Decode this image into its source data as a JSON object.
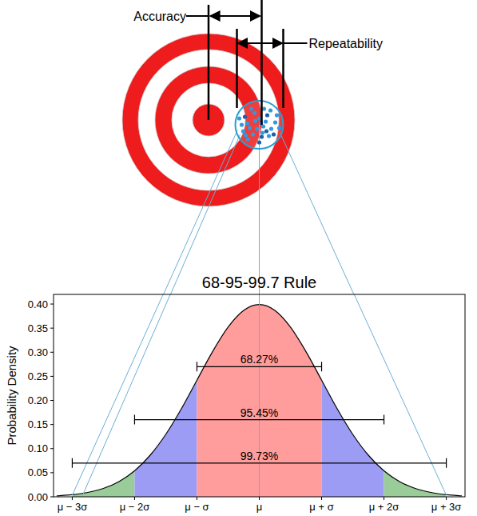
{
  "diagram": {
    "labels": {
      "accuracy": "Accuracy",
      "repeatability": "Repeatability"
    },
    "shots": [
      [
        -18,
        -10
      ],
      [
        -12,
        4
      ],
      [
        -6,
        -15
      ],
      [
        0,
        -8
      ],
      [
        5,
        2
      ],
      [
        10,
        -12
      ],
      [
        15,
        5
      ],
      [
        20,
        -3
      ],
      [
        -20,
        8
      ],
      [
        -8,
        12
      ],
      [
        3,
        15
      ],
      [
        12,
        14
      ],
      [
        -15,
        -2
      ],
      [
        8,
        -4
      ],
      [
        -3,
        5
      ],
      [
        18,
        12
      ],
      [
        -10,
        -20
      ],
      [
        6,
        -20
      ],
      [
        22,
        -12
      ],
      [
        -22,
        0
      ],
      [
        0,
        22
      ],
      [
        -14,
        18
      ],
      [
        14,
        -18
      ],
      [
        2,
        -2
      ],
      [
        -5,
        -5
      ],
      [
        9,
        8
      ],
      [
        -17,
        13
      ],
      [
        25,
        4
      ],
      [
        -25,
        -8
      ],
      [
        4,
        10
      ]
    ]
  },
  "chart_data": {
    "type": "line",
    "title": "68-95-99.7 Rule",
    "y_label": "Probability Density",
    "x": [
      -3.25,
      -3,
      -2.75,
      -2.5,
      -2.25,
      -2,
      -1.75,
      -1.5,
      -1.25,
      -1,
      -0.75,
      -0.5,
      -0.25,
      0,
      0.25,
      0.5,
      0.75,
      1,
      1.25,
      1.5,
      1.75,
      2,
      2.25,
      2.5,
      2.75,
      3,
      3.25
    ],
    "values": [
      0.002,
      0.0044,
      0.0091,
      0.0175,
      0.0317,
      0.054,
      0.0863,
      0.1295,
      0.1826,
      0.242,
      0.3011,
      0.3521,
      0.3867,
      0.3989,
      0.3867,
      0.3521,
      0.3011,
      0.242,
      0.1826,
      0.1295,
      0.0863,
      0.054,
      0.0317,
      0.0175,
      0.0091,
      0.0044,
      0.002
    ],
    "color": "#000000",
    "xlim": [
      -3.3,
      3.3
    ],
    "xticks": [
      {
        "value": -3,
        "label": "μ − 3σ"
      },
      {
        "value": -2,
        "label": "μ − 2σ"
      },
      {
        "value": -1,
        "label": "μ − σ"
      },
      {
        "value": 0,
        "label": "μ"
      },
      {
        "value": 1,
        "label": "μ + σ"
      },
      {
        "value": 2,
        "label": "μ + 2σ"
      },
      {
        "value": 3,
        "label": "μ + 3σ"
      }
    ],
    "ylim": [
      0,
      0.42
    ],
    "yticks": [
      {
        "value": 0,
        "label": "0.00"
      },
      {
        "value": 0.05,
        "label": "0.05"
      },
      {
        "value": 0.1,
        "label": "0.10"
      },
      {
        "value": 0.15,
        "label": "0.15"
      },
      {
        "value": 0.2,
        "label": "0.20"
      },
      {
        "value": 0.25,
        "label": "0.25"
      },
      {
        "value": 0.3,
        "label": "0.30"
      },
      {
        "value": 0.35,
        "label": "0.35"
      },
      {
        "value": 0.4,
        "label": "0.40"
      }
    ],
    "grid": false,
    "regions": [
      {
        "from": -3,
        "to": -2,
        "color": "#99cc99"
      },
      {
        "from": -2,
        "to": -1,
        "color": "#9c9cf4"
      },
      {
        "from": -1,
        "to": 1,
        "color": "#ff9c9c"
      },
      {
        "from": 1,
        "to": 2,
        "color": "#9c9cf4"
      },
      {
        "from": 2,
        "to": 3,
        "color": "#99cc99"
      }
    ],
    "intervals": [
      {
        "label": "68.27%",
        "from": -1,
        "to": 1,
        "y": 0.27
      },
      {
        "label": "95.45%",
        "from": -2,
        "to": 2,
        "y": 0.16
      },
      {
        "label": "99.73%",
        "from": -3,
        "to": 3,
        "y": 0.07
      }
    ]
  }
}
